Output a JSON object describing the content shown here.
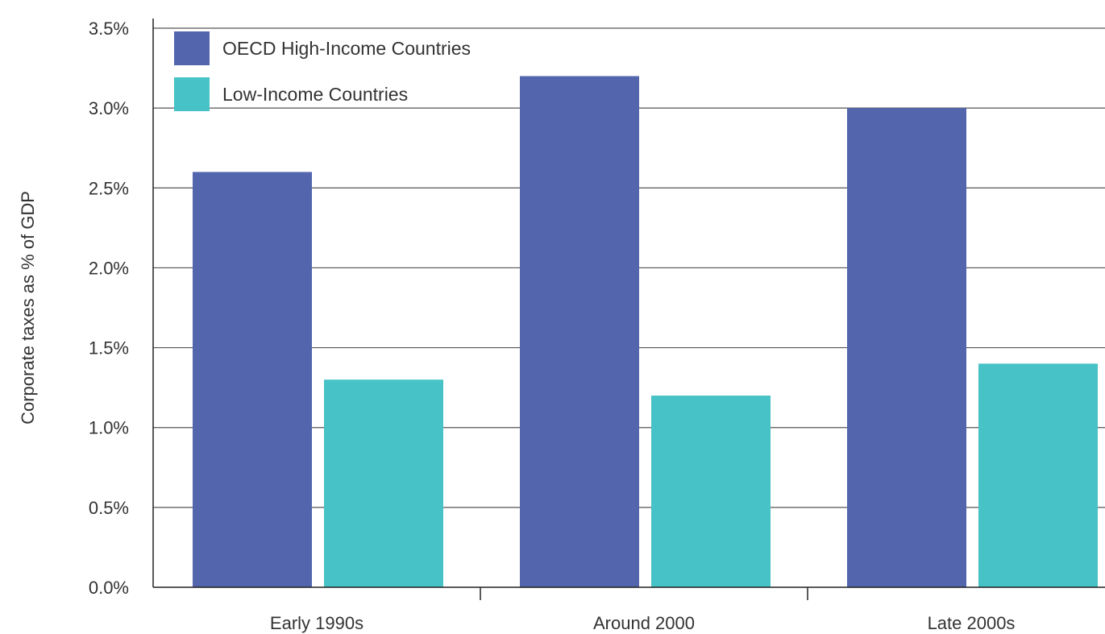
{
  "chart_data": {
    "type": "bar",
    "title": "",
    "xlabel": "",
    "ylabel": "Corporate taxes as % of GDP",
    "categories": [
      "Early 1990s",
      "Around 2000",
      "Late 2000s"
    ],
    "series": [
      {
        "name": "OECD High-Income Countries",
        "values": [
          2.6,
          3.2,
          3.0
        ],
        "color": "#5366ad"
      },
      {
        "name": "Low-Income Countries",
        "values": [
          1.3,
          1.2,
          1.4
        ],
        "color": "#47c2c6"
      }
    ],
    "ylim": [
      0,
      3.5
    ],
    "yticks": [
      {
        "value": 0.0,
        "label": "0.0%"
      },
      {
        "value": 0.5,
        "label": "0.5%"
      },
      {
        "value": 1.0,
        "label": "1.0%"
      },
      {
        "value": 1.5,
        "label": "1.5%"
      },
      {
        "value": 2.0,
        "label": "2.0%"
      },
      {
        "value": 2.5,
        "label": "2.5%"
      },
      {
        "value": 3.0,
        "label": "3.0%"
      },
      {
        "value": 3.5,
        "label": "3.5%"
      }
    ],
    "grid": true,
    "legend_position": "top-left",
    "colors": {
      "grid": "#555555",
      "axis": "#222222",
      "text": "#333333"
    }
  }
}
